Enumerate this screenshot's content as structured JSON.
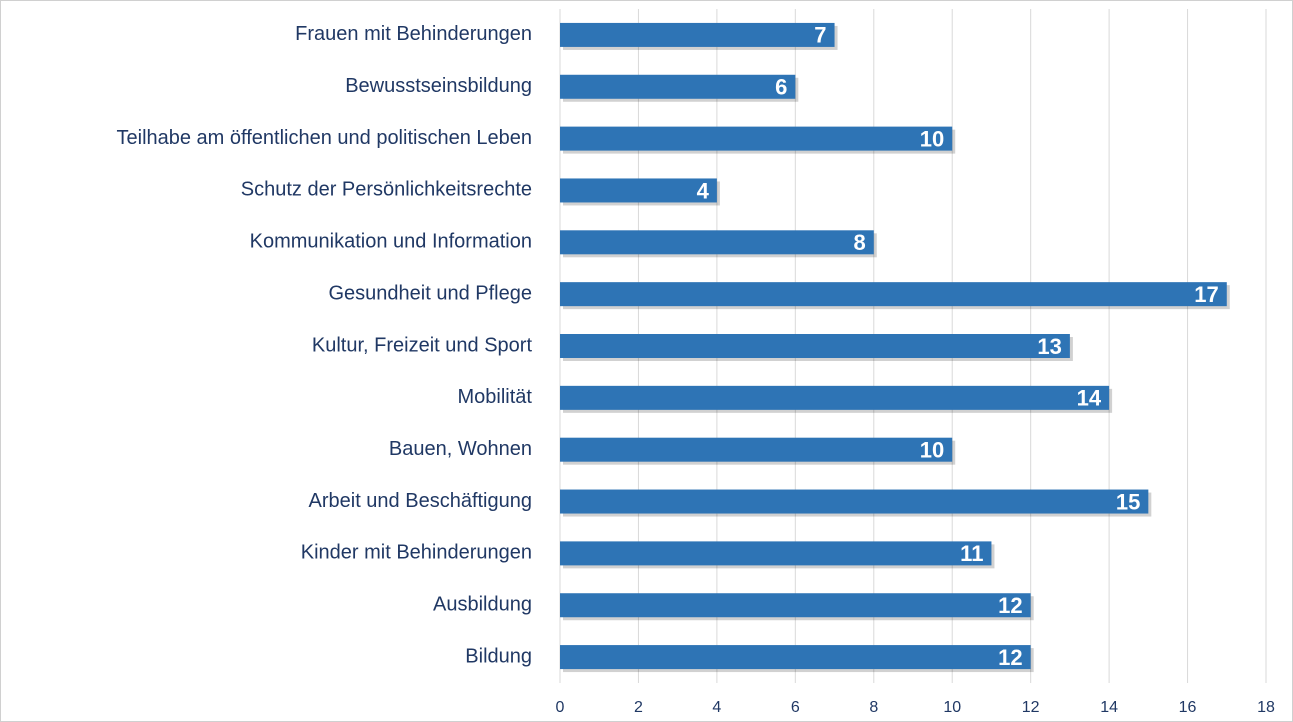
{
  "chart_data": {
    "type": "bar",
    "orientation": "horizontal",
    "categories": [
      "Frauen mit Behinderungen",
      "Bewusstseinsbildung",
      "Teilhabe am öffentlichen und politischen Leben",
      "Schutz der Persönlichkeitsrechte",
      "Kommunikation und Information",
      "Gesundheit und Pflege",
      "Kultur, Freizeit und Sport",
      "Mobilität",
      "Bauen, Wohnen",
      "Arbeit und Beschäftigung",
      "Kinder mit Behinderungen",
      "Ausbildung",
      "Bildung"
    ],
    "values": [
      7,
      6,
      10,
      4,
      8,
      17,
      13,
      14,
      10,
      15,
      11,
      12,
      12
    ],
    "color": "#2e74b5",
    "xlim": [
      0,
      18
    ],
    "xticks": [
      0,
      2,
      4,
      6,
      8,
      10,
      12,
      14,
      16,
      18
    ],
    "grid": true
  }
}
